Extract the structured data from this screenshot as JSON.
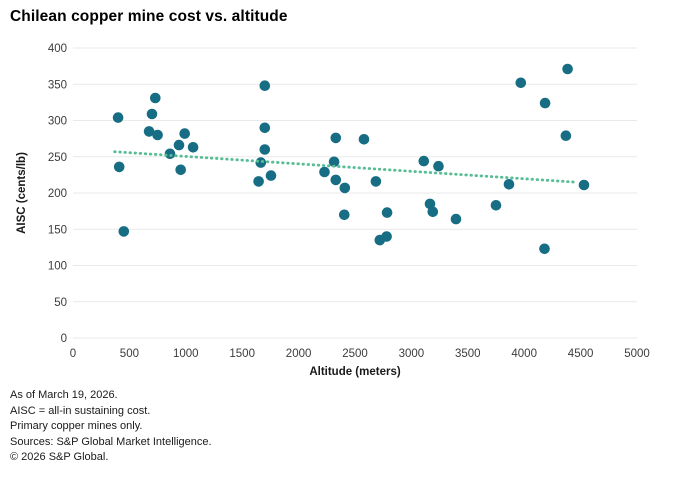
{
  "chart_data": {
    "type": "scatter",
    "title": "Chilean copper mine cost vs. altitude",
    "xlabel": "Altitude (meters)",
    "ylabel": "AISC (cents/lb)",
    "xlim": [
      0,
      5000
    ],
    "ylim": [
      0,
      400
    ],
    "x_ticks": [
      0,
      500,
      1000,
      1500,
      2000,
      2500,
      3000,
      3500,
      4000,
      4500,
      5000
    ],
    "y_ticks": [
      0,
      50,
      100,
      150,
      200,
      250,
      300,
      350,
      400
    ],
    "grid": "horizontal",
    "legend": "none",
    "points": [
      [
        400,
        304
      ],
      [
        410,
        236
      ],
      [
        450,
        147
      ],
      [
        675,
        285
      ],
      [
        700,
        309
      ],
      [
        730,
        331
      ],
      [
        750,
        280
      ],
      [
        860,
        254
      ],
      [
        940,
        266
      ],
      [
        955,
        232
      ],
      [
        990,
        282
      ],
      [
        1065,
        263
      ],
      [
        1645,
        216
      ],
      [
        1665,
        242
      ],
      [
        1700,
        348
      ],
      [
        1700,
        290
      ],
      [
        1700,
        260
      ],
      [
        1755,
        224
      ],
      [
        2230,
        229
      ],
      [
        2315,
        243
      ],
      [
        2330,
        276
      ],
      [
        2330,
        218
      ],
      [
        2405,
        170
      ],
      [
        2410,
        207
      ],
      [
        2580,
        274
      ],
      [
        2685,
        216
      ],
      [
        2720,
        135
      ],
      [
        2780,
        140
      ],
      [
        2785,
        173
      ],
      [
        3110,
        244
      ],
      [
        3165,
        185
      ],
      [
        3190,
        174
      ],
      [
        3240,
        237
      ],
      [
        3395,
        164
      ],
      [
        3750,
        183
      ],
      [
        3865,
        212
      ],
      [
        3970,
        352
      ],
      [
        4180,
        123
      ],
      [
        4185,
        324
      ],
      [
        4370,
        279
      ],
      [
        4385,
        371
      ],
      [
        4530,
        211
      ]
    ],
    "trendline": {
      "x_start": 370,
      "y_start": 257,
      "x_end": 4450,
      "y_end": 215,
      "style": "dotted"
    },
    "colors": {
      "point": "#176d83",
      "trend": "#56bd95",
      "grid": "#e9e9e9",
      "tick_label": "#3c3c3c",
      "axis_title": "#1a1a1a"
    }
  },
  "footer": {
    "lines": [
      "As of March 19, 2026.",
      "AISC = all-in sustaining cost.",
      "Primary copper mines only.",
      "Sources: S&P Global Market Intelligence.",
      "© 2026 S&P Global."
    ]
  }
}
